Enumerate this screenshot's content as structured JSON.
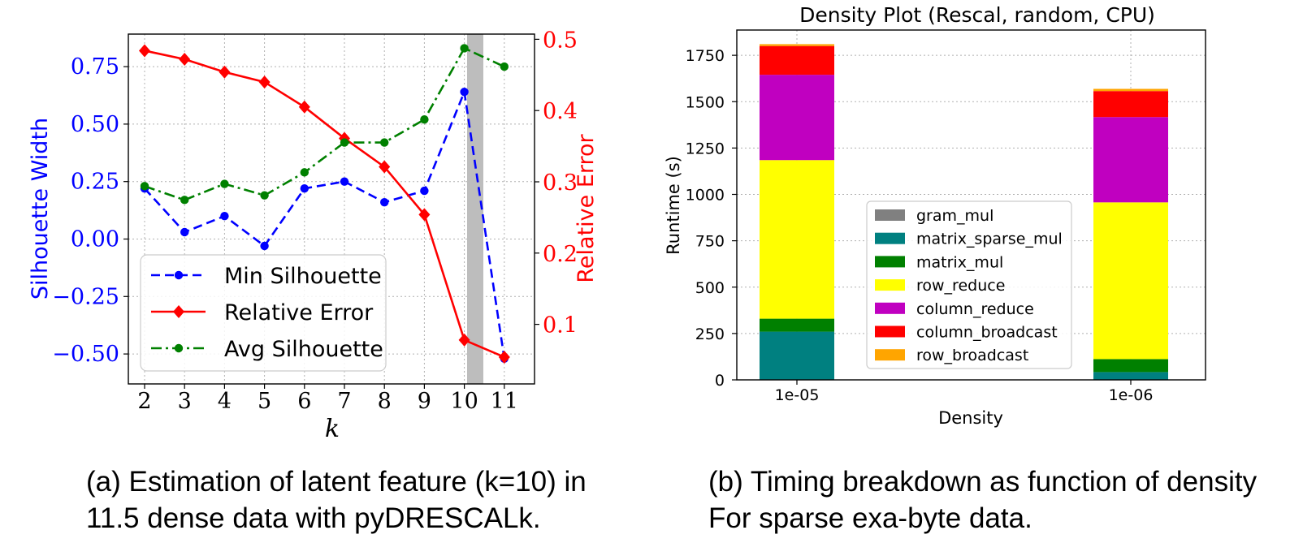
{
  "chart_data": [
    {
      "type": "line",
      "x": [
        2,
        3,
        4,
        5,
        6,
        7,
        8,
        9,
        10,
        11
      ],
      "xlabel": "k",
      "ylabel_left": "Silhouette Width",
      "ylabel_right": "Relative Error",
      "ylim_left": [
        -0.6,
        0.9
      ],
      "ylim_right": [
        0.04,
        0.5
      ],
      "xticks": [
        "2",
        "3",
        "4",
        "5",
        "6",
        "7",
        "8",
        "9",
        "10",
        "11"
      ],
      "yticks_left": [
        "0.75",
        "0.50",
        "0.25",
        "0.00",
        "−0.25",
        "−0.50"
      ],
      "yticks_right": [
        "0.5",
        "0.4",
        "0.3",
        "0.2",
        "0.1"
      ],
      "grid": true,
      "legend_position": "lower-left",
      "highlight_k": 10,
      "series": [
        {
          "name": "Min Silhouette",
          "axis": "left",
          "color": "#0000ff",
          "style": "dashed",
          "marker": "circle",
          "values": [
            0.22,
            0.03,
            0.1,
            -0.03,
            0.22,
            0.25,
            0.16,
            0.21,
            0.64,
            -0.52
          ]
        },
        {
          "name": "Relative Error",
          "axis": "right",
          "color": "#ff0000",
          "style": "solid",
          "marker": "diamond",
          "values": [
            0.484,
            0.472,
            0.454,
            0.44,
            0.405,
            0.361,
            0.321,
            0.254,
            0.078,
            0.054
          ]
        },
        {
          "name": "Avg Silhouette",
          "axis": "left",
          "color": "#008000",
          "style": "dashdot",
          "marker": "circle",
          "values": [
            0.23,
            0.17,
            0.24,
            0.19,
            0.29,
            0.42,
            0.42,
            0.52,
            0.83,
            0.75
          ]
        }
      ]
    },
    {
      "type": "bar",
      "stacked": true,
      "title": "Density Plot (Rescal, random, CPU)",
      "xlabel": "Density",
      "ylabel": "Runtime (s)",
      "categories": [
        "1e-05",
        "1e-06"
      ],
      "ylim": [
        0,
        1900
      ],
      "yticks": [
        "0",
        "250",
        "500",
        "750",
        "1000",
        "1250",
        "1500",
        "1750"
      ],
      "grid": true,
      "legend_position": "center",
      "series": [
        {
          "name": "gram_mul",
          "color": "#808080",
          "values": [
            2,
            2
          ]
        },
        {
          "name": "matrix_sparse_mul",
          "color": "#008080",
          "values": [
            258,
            40
          ]
        },
        {
          "name": "matrix_mul",
          "color": "#008000",
          "values": [
            70,
            70
          ]
        },
        {
          "name": "row_reduce",
          "color": "#ffff00",
          "values": [
            855,
            845
          ]
        },
        {
          "name": "column_reduce",
          "color": "#c000c0",
          "values": [
            460,
            460
          ]
        },
        {
          "name": "column_broadcast",
          "color": "#ff0000",
          "values": [
            155,
            140
          ]
        },
        {
          "name": "row_broadcast",
          "color": "#ffa500",
          "values": [
            10,
            12
          ]
        }
      ]
    }
  ],
  "captions": {
    "a_line1": "(a) Estimation of latent feature (k=10) in",
    "a_line2": "11.5 dense data with pyDRESCALk.",
    "b_line1": "(b) Timing breakdown as function of density",
    "b_line2": "For sparse exa-byte data."
  }
}
